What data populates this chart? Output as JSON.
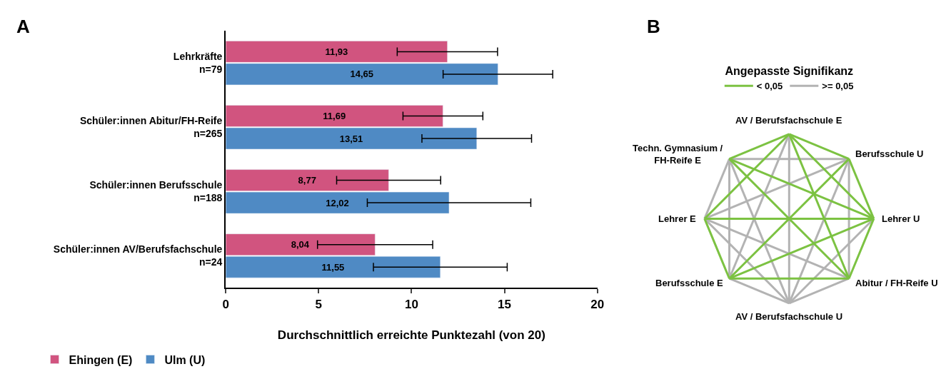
{
  "chart_data": [
    {
      "type": "bar",
      "title": "A",
      "orientation": "horizontal",
      "xlabel": "Durchschnittlich erreichte Punktezahl (von 20)",
      "categories": [
        "Lehrkräfte\nn=79",
        "Schüler:innen Abitur/FH-Reife\nn=265",
        "Schüler:innen Berufsschule\nn=188",
        "Schüler:innen AV/Berufsfachschule\nn=24"
      ],
      "series": [
        {
          "name": "Ehingen (E)",
          "color": "#d1547f",
          "values": [
            11.93,
            11.69,
            8.77,
            8.04
          ],
          "errors": [
            2.7,
            2.15,
            2.8,
            3.1
          ],
          "value_labels": [
            "11,93",
            "11,69",
            "8,77",
            "8,04"
          ]
        },
        {
          "name": "Ulm (U)",
          "color": "#4f8ac4",
          "values": [
            14.65,
            13.51,
            12.02,
            11.55
          ],
          "errors": [
            2.95,
            2.95,
            4.4,
            3.6
          ],
          "value_labels": [
            "14,65",
            "13,51",
            "12,02",
            "11,55"
          ]
        }
      ],
      "xlim": [
        0,
        20
      ],
      "xticks": [
        0,
        5,
        10,
        15,
        20
      ],
      "legend": "bottom"
    },
    {
      "type": "other",
      "title": "B",
      "legend_title": "Angepasste Signifikanz",
      "categories": [
        "AV / Berufsfachschule E",
        "Berufsschule U",
        "Lehrer U",
        "Abitur / FH-Reife U",
        "AV / Berufsfachschule U",
        "Berufsschule E",
        "Lehrer E",
        "Techn. Gymnasium /\nFH-Reife E"
      ],
      "annotations": [
        "< 0,05",
        ">= 0,05"
      ],
      "colors": [
        [
          null,
          "#7cc242",
          "#7cc242",
          "#7cc242",
          "#b3b3b3",
          "#b3b3b3",
          "#7cc242",
          "#7cc242"
        ],
        [
          null,
          null,
          "#7cc242",
          "#b3b3b3",
          "#b3b3b3",
          "#7cc242",
          "#b3b3b3",
          "#b3b3b3"
        ],
        [
          null,
          null,
          null,
          "#7cc242",
          "#b3b3b3",
          "#7cc242",
          "#7cc242",
          "#7cc242"
        ],
        [
          null,
          null,
          null,
          null,
          "#b3b3b3",
          "#7cc242",
          "#b3b3b3",
          "#7cc242"
        ],
        [
          null,
          null,
          null,
          null,
          null,
          "#b3b3b3",
          "#b3b3b3",
          "#b3b3b3"
        ],
        [
          null,
          null,
          null,
          null,
          null,
          null,
          "#7cc242",
          "#b3b3b3"
        ],
        [
          null,
          null,
          null,
          null,
          null,
          null,
          null,
          "#b3b3b3"
        ],
        [
          null,
          null,
          null,
          null,
          null,
          null,
          null,
          null
        ]
      ]
    }
  ]
}
